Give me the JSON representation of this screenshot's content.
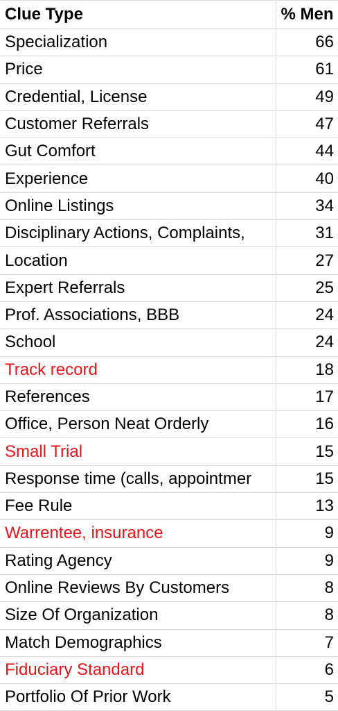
{
  "headers": {
    "clue_type": "Clue Type",
    "pct_men": "% Men"
  },
  "colors": {
    "highlight": "#e8141b",
    "text": "#000000",
    "grid": "#d9d9d9"
  },
  "rows": [
    {
      "clue": "Specialization",
      "value": "66",
      "highlight": false
    },
    {
      "clue": "Price",
      "value": "61",
      "highlight": false
    },
    {
      "clue": "Credential, License",
      "value": "49",
      "highlight": false
    },
    {
      "clue": "Customer Referrals",
      "value": "47",
      "highlight": false
    },
    {
      "clue": "Gut Comfort",
      "value": "44",
      "highlight": false
    },
    {
      "clue": "Experience",
      "value": "40",
      "highlight": false
    },
    {
      "clue": "Online Listings",
      "value": "34",
      "highlight": false
    },
    {
      "clue": "Disciplinary Actions, Complaints,",
      "value": "31",
      "highlight": false
    },
    {
      "clue": "Location",
      "value": "27",
      "highlight": false
    },
    {
      "clue": "Expert Referrals",
      "value": "25",
      "highlight": false
    },
    {
      "clue": "Prof. Associations, BBB",
      "value": "24",
      "highlight": false
    },
    {
      "clue": "School",
      "value": "24",
      "highlight": false
    },
    {
      "clue": "Track record",
      "value": "18",
      "highlight": true
    },
    {
      "clue": "References",
      "value": "17",
      "highlight": false
    },
    {
      "clue": "Office, Person Neat Orderly",
      "value": "16",
      "highlight": false
    },
    {
      "clue": "Small Trial",
      "value": "15",
      "highlight": true
    },
    {
      "clue": "Response time (calls, appointmer",
      "value": "15",
      "highlight": false
    },
    {
      "clue": "Fee Rule",
      "value": "13",
      "highlight": false
    },
    {
      "clue": "Warrentee, insurance",
      "value": "9",
      "highlight": true
    },
    {
      "clue": "Rating Agency",
      "value": "9",
      "highlight": false
    },
    {
      "clue": "Online Reviews By Customers",
      "value": "8",
      "highlight": false
    },
    {
      "clue": "Size Of Organization",
      "value": "8",
      "highlight": false
    },
    {
      "clue": "Match Demographics",
      "value": "7",
      "highlight": false
    },
    {
      "clue": "Fiduciary Standard",
      "value": "6",
      "highlight": true
    },
    {
      "clue": "Portfolio Of Prior Work",
      "value": "5",
      "highlight": false
    }
  ]
}
